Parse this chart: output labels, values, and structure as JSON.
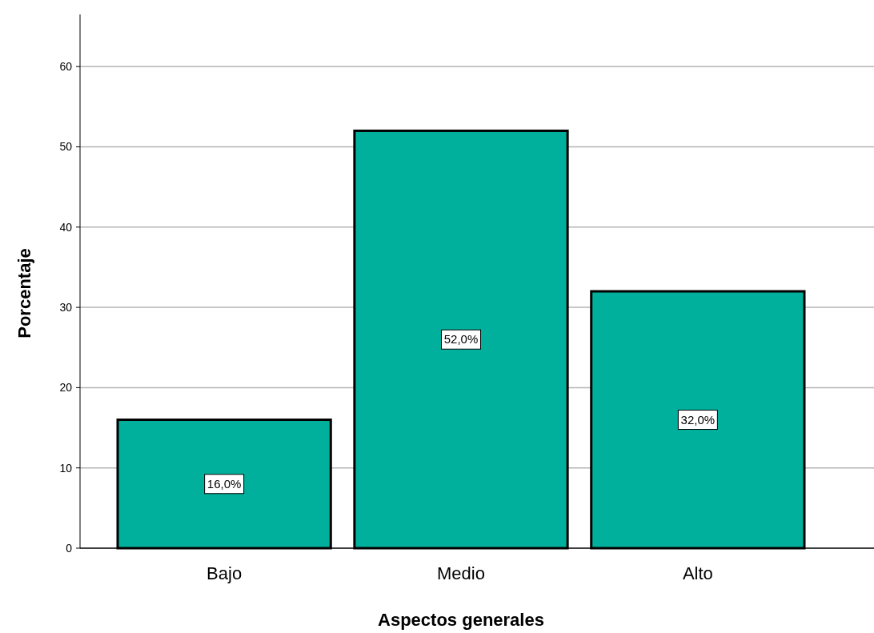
{
  "chart_data": {
    "type": "bar",
    "xlabel": "Aspectos generales",
    "ylabel": "Porcentaje",
    "categories": [
      "Bajo",
      "Medio",
      "Alto"
    ],
    "values": [
      16,
      52,
      32
    ],
    "value_labels": [
      "16,0%",
      "52,0%",
      "32,0%"
    ],
    "color": "#00b09c",
    "ylim": [
      0,
      66.5
    ],
    "yticks": [
      0,
      10,
      20,
      30,
      40,
      50,
      60
    ],
    "grid": "y"
  }
}
